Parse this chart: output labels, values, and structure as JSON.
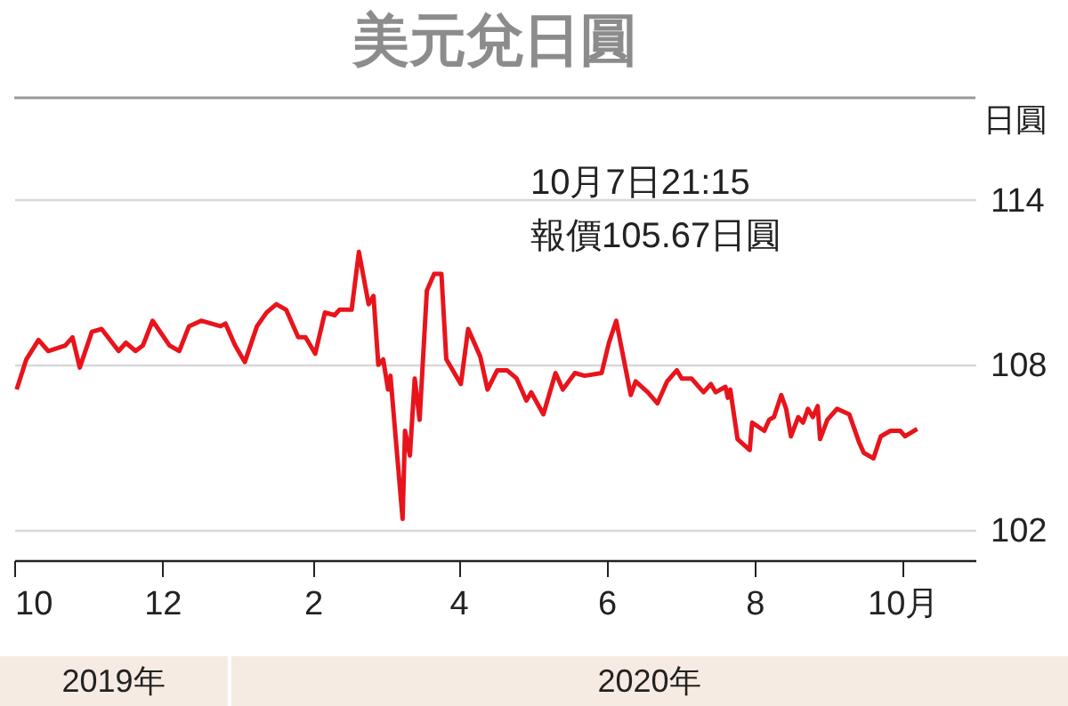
{
  "chart_data": {
    "type": "line",
    "title": "美元兌日圓",
    "ylabel": "日圓",
    "annotations": [
      "10月7日21:15",
      "報價105.67日圓",
      "2019年",
      "2020年"
    ],
    "x": [
      "2019-10-02",
      "2019-10-06",
      "2019-10-11",
      "2019-10-15",
      "2019-10-22",
      "2019-10-25",
      "2019-10-28",
      "2019-11-02",
      "2019-11-06",
      "2019-11-13",
      "2019-11-16",
      "2019-11-20",
      "2019-11-23",
      "2019-11-27",
      "2019-12-04",
      "2019-12-08",
      "2019-12-12",
      "2019-12-17",
      "2019-12-25",
      "2019-12-27",
      "2019-12-31",
      "2020-01-04",
      "2020-01-09",
      "2020-01-13",
      "2020-01-17",
      "2020-01-21",
      "2020-01-26",
      "2020-01-29",
      "2020-02-02",
      "2020-02-06",
      "2020-02-10",
      "2020-02-12",
      "2020-02-17",
      "2020-02-20",
      "2020-02-24",
      "2020-02-26",
      "2020-02-28",
      "2020-03-01",
      "2020-03-03",
      "2020-03-04",
      "2020-03-06",
      "2020-03-09",
      "2020-03-10",
      "2020-03-12",
      "2020-03-14",
      "2020-03-16",
      "2020-03-19",
      "2020-03-22",
      "2020-03-25",
      "2020-03-27",
      "2020-04-02",
      "2020-04-05",
      "2020-04-07",
      "2020-04-10",
      "2020-04-13",
      "2020-04-17",
      "2020-04-21",
      "2020-04-25",
      "2020-04-29",
      "2020-05-01",
      "2020-05-06",
      "2020-05-11",
      "2020-05-14",
      "2020-05-19",
      "2020-05-23",
      "2020-05-30",
      "2020-06-02",
      "2020-06-05",
      "2020-06-11",
      "2020-06-13",
      "2020-06-18",
      "2020-06-22",
      "2020-06-26",
      "2020-06-30",
      "2020-07-02",
      "2020-07-06",
      "2020-07-11",
      "2020-07-14",
      "2020-07-16",
      "2020-07-20",
      "2020-07-21",
      "2020-07-22",
      "2020-07-25",
      "2020-07-30",
      "2020-07-31",
      "2020-08-05",
      "2020-08-07",
      "2020-08-09",
      "2020-08-12",
      "2020-08-14",
      "2020-08-16",
      "2020-08-19",
      "2020-08-21",
      "2020-08-23",
      "2020-08-25",
      "2020-08-27",
      "2020-08-28",
      "2020-08-31",
      "2020-09-04",
      "2020-09-09",
      "2020-09-13",
      "2020-09-15",
      "2020-09-19",
      "2020-09-22",
      "2020-09-26",
      "2020-09-30",
      "2020-10-02",
      "2020-10-07"
    ],
    "series": [
      {
        "color": "#e8141c",
        "values": [
          107.1,
          108.2,
          108.9,
          108.5,
          108.7,
          109.0,
          107.9,
          109.2,
          109.3,
          108.5,
          108.8,
          108.5,
          108.7,
          109.6,
          108.7,
          108.5,
          109.4,
          109.6,
          109.4,
          109.5,
          108.7,
          108.1,
          109.4,
          109.9,
          110.2,
          110.0,
          109.0,
          109.0,
          108.4,
          109.9,
          109.8,
          110.0,
          110.0,
          112.1,
          110.2,
          110.5,
          108.0,
          108.2,
          107.1,
          107.6,
          105.5,
          102.4,
          105.6,
          104.7,
          107.5,
          106.0,
          110.7,
          111.3,
          111.3,
          108.2,
          107.3,
          109.3,
          108.9,
          108.3,
          107.1,
          107.8,
          107.8,
          107.5,
          106.7,
          107.0,
          106.2,
          107.7,
          107.1,
          107.7,
          107.6,
          107.7,
          108.8,
          109.6,
          106.9,
          107.4,
          107.0,
          106.6,
          107.4,
          107.8,
          107.5,
          107.5,
          107.0,
          107.3,
          107.0,
          107.2,
          106.8,
          107.1,
          105.3,
          104.9,
          105.9,
          105.6,
          106.0,
          106.1,
          106.9,
          106.4,
          105.4,
          106.1,
          105.9,
          106.4,
          106.1,
          106.5,
          105.3,
          106.0,
          106.4,
          106.2,
          105.2,
          104.8,
          104.6,
          105.4,
          105.6,
          105.6,
          105.4,
          105.67
        ]
      }
    ],
    "xlim": [
      "2019-10-01",
      "2020-10-31"
    ],
    "xticks": [
      {
        "value": "2019-10-01",
        "label": "10"
      },
      {
        "value": "2019-12-01",
        "label": "12"
      },
      {
        "value": "2020-02-01",
        "label": "2"
      },
      {
        "value": "2020-04-01",
        "label": "4"
      },
      {
        "value": "2020-06-01",
        "label": "6"
      },
      {
        "value": "2020-08-01",
        "label": "8"
      },
      {
        "value": "2020-10-01",
        "label": "10月"
      }
    ],
    "ylim": [
      100.9,
      117.7
    ],
    "yticks": [
      102,
      108,
      114
    ],
    "grid": "y",
    "line_style": "solid"
  }
}
